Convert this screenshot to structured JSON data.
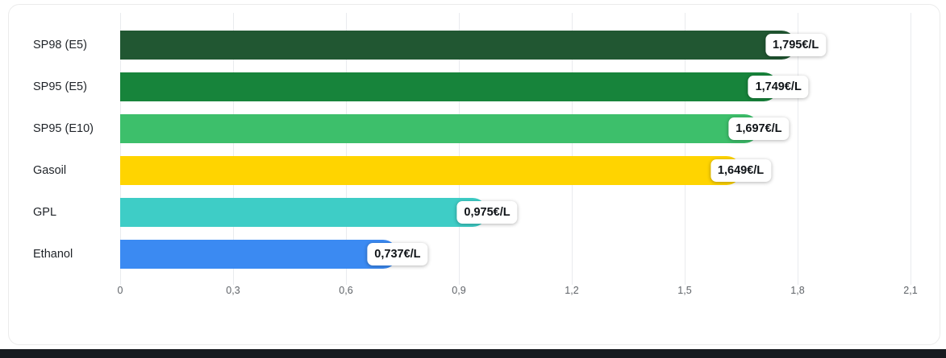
{
  "chart_data": {
    "type": "bar",
    "orientation": "horizontal",
    "title": "",
    "xlabel": "",
    "ylabel": "",
    "categories": [
      "SP98 (E5)",
      "SP95 (E5)",
      "SP95 (E10)",
      "Gasoil",
      "GPL",
      "Ethanol"
    ],
    "values": [
      1.795,
      1.749,
      1.697,
      1.649,
      0.975,
      0.737
    ],
    "value_labels": [
      "1,795€/L",
      "1,749€/L",
      "1,697€/L",
      "1,649€/L",
      "0,975€/L",
      "0,737€/L"
    ],
    "bar_colors": [
      "#215732",
      "#17843b",
      "#3dbf6b",
      "#ffd400",
      "#3ecdc6",
      "#3b8af2"
    ],
    "xlim": [
      0,
      2.1
    ],
    "x_ticks": [
      0,
      0.3,
      0.6,
      0.9,
      1.2,
      1.5,
      1.8,
      2.1
    ],
    "x_tick_labels": [
      "0",
      "0,3",
      "0,6",
      "0,9",
      "1,2",
      "1,5",
      "1,8",
      "2,1"
    ],
    "grid": "vertical",
    "legend": "none",
    "unit": "€/L"
  },
  "colors": {
    "card_background": "#ffffff",
    "card_border": "#ebebeb",
    "grid_line": "#e9ebee",
    "label_text": "#1f2328",
    "tick_text": "#5f6368",
    "badge_background": "#ffffff",
    "badge_text": "#101418",
    "footer_strip": "#171a1f"
  }
}
